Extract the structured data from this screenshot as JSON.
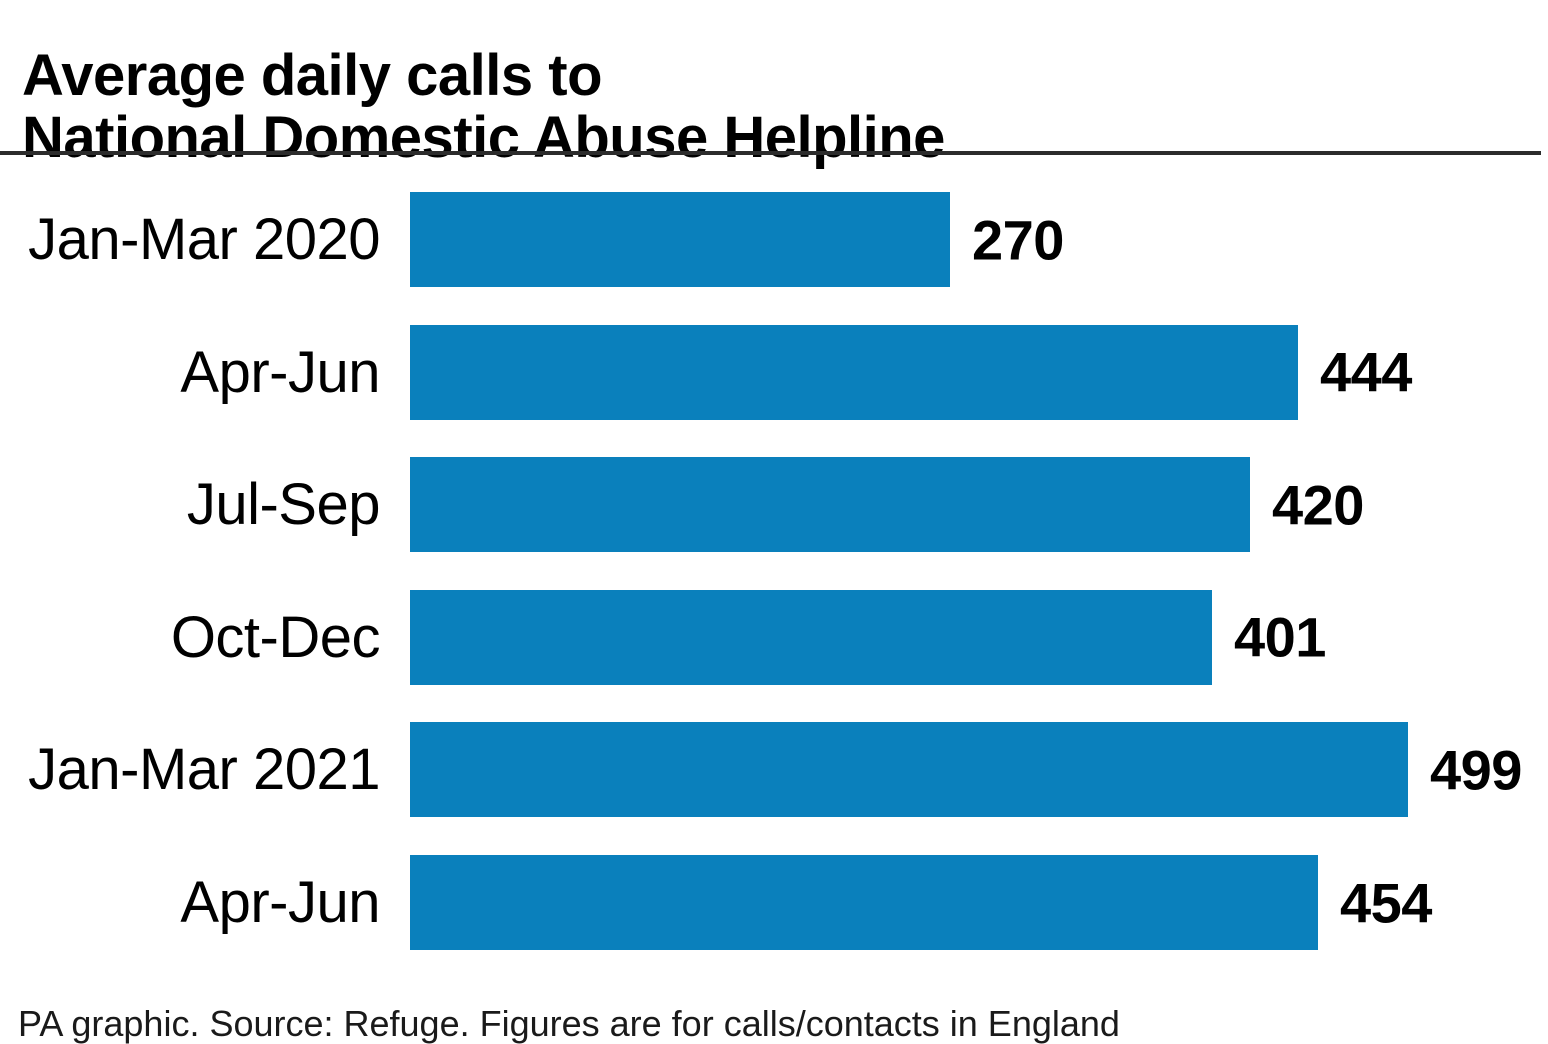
{
  "title": {
    "line1": "Average daily calls to",
    "line2": "National Domestic Abuse Helpline"
  },
  "chart_data": {
    "type": "bar",
    "orientation": "horizontal",
    "title": "Average daily calls to National Domestic Abuse Helpline",
    "categories": [
      "Jan-Mar 2020",
      "Apr-Jun",
      "Jul-Sep",
      "Oct-Dec",
      "Jan-Mar 2021",
      "Apr-Jun"
    ],
    "values": [
      270,
      444,
      420,
      401,
      499,
      454
    ],
    "xlabel": "",
    "ylabel": "",
    "xlim": [
      0,
      569
    ],
    "grid": false,
    "legend": "none",
    "value_labels_shown": true,
    "bar_color": "#0a80bc"
  },
  "colors": {
    "bar": "#0a80bc",
    "divider": "#2c2c2c",
    "text": "#000000",
    "caption_text": "#1a1a1a"
  },
  "footer": {
    "caption": "PA graphic. Source: Refuge. Figures are for calls/contacts in England"
  }
}
